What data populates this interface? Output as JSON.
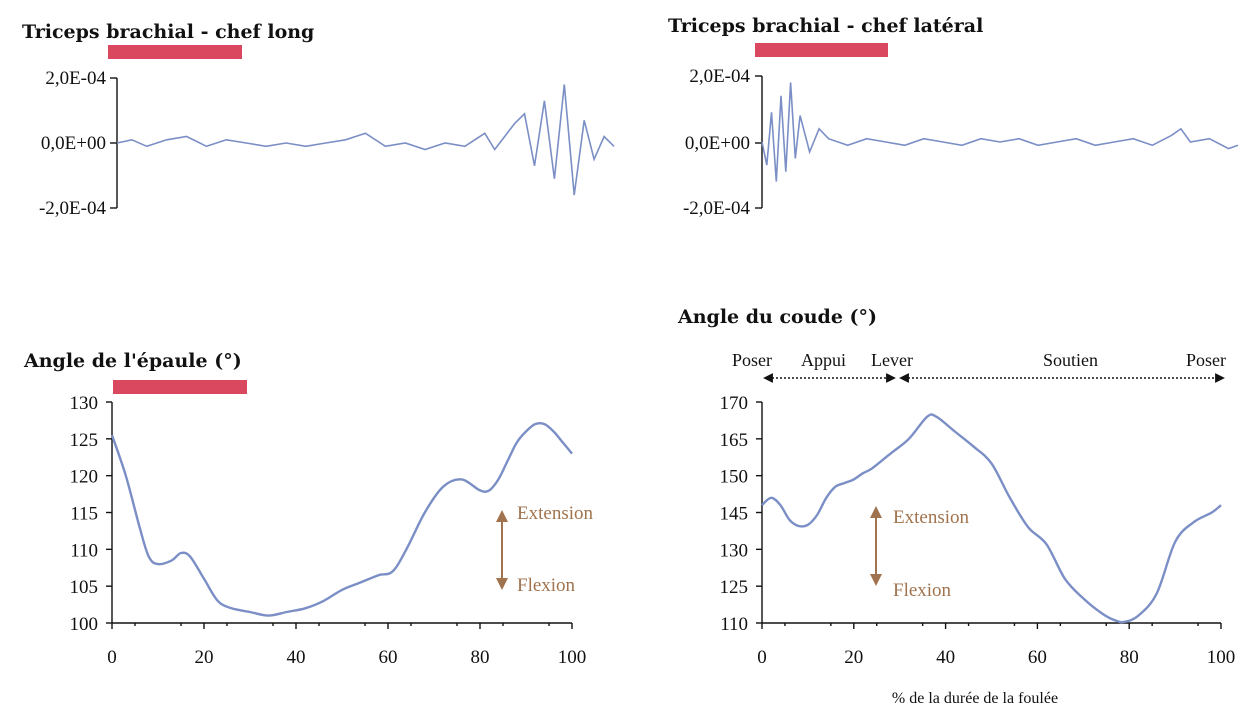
{
  "colors": {
    "trace": "#7b8fc6",
    "bar": "#d9485f",
    "arrow": "#a0734e",
    "axis": "#111111"
  },
  "chart_data": [
    {
      "id": "emg_long",
      "type": "line",
      "title": "Triceps brachial - chef long",
      "y_ticks": [
        "2,0E-04",
        "0,0E+00",
        "-2,0E-04"
      ],
      "ylim": [
        -0.0002,
        0.0002
      ],
      "xlim": [
        0,
        100
      ],
      "activity_bar": [
        0,
        28
      ],
      "series": [
        {
          "x": [
            0,
            3,
            6,
            10,
            14,
            18,
            22,
            26,
            30,
            34,
            38,
            42,
            46,
            50,
            54,
            58,
            62,
            66,
            70,
            74,
            76,
            78,
            80,
            82,
            84,
            86,
            88,
            90,
            92,
            94,
            96,
            98,
            100
          ],
          "values": [
            0.0,
            1e-05,
            -1e-05,
            1e-05,
            2e-05,
            -1e-05,
            1e-05,
            0.0,
            -1e-05,
            0.0,
            -1e-05,
            0.0,
            1e-05,
            3e-05,
            -1e-05,
            0.0,
            -2e-05,
            0.0,
            -1e-05,
            3e-05,
            -2e-05,
            2e-05,
            6e-05,
            9e-05,
            -7e-05,
            0.00013,
            -0.00011,
            0.00018,
            -0.00016,
            7e-05,
            -5e-05,
            2e-05,
            -1e-05
          ]
        }
      ]
    },
    {
      "id": "emg_lateral",
      "type": "line",
      "title": "Triceps brachial - chef latéral",
      "y_ticks": [
        "2,0E-04",
        "0,0E+00",
        "-2,0E-04"
      ],
      "ylim": [
        -0.0002,
        0.0002
      ],
      "xlim": [
        0,
        100
      ],
      "activity_bar": [
        0,
        28
      ],
      "series": [
        {
          "x": [
            0,
            1,
            2,
            3,
            4,
            5,
            6,
            7,
            8,
            10,
            12,
            14,
            18,
            22,
            26,
            30,
            34,
            38,
            42,
            46,
            50,
            54,
            58,
            62,
            66,
            70,
            74,
            78,
            82,
            86,
            88,
            90,
            94,
            98,
            100
          ],
          "values": [
            0.0,
            -7e-05,
            9e-05,
            -0.00012,
            0.00014,
            -9e-05,
            0.00018,
            -5e-05,
            8e-05,
            -3e-05,
            4e-05,
            1e-05,
            -1e-05,
            1e-05,
            0.0,
            -1e-05,
            1e-05,
            0.0,
            -1e-05,
            1e-05,
            0.0,
            1e-05,
            -1e-05,
            0.0,
            1e-05,
            -1e-05,
            0.0,
            1e-05,
            -1e-05,
            2e-05,
            4e-05,
            0.0,
            1e-05,
            -2e-05,
            -1e-05
          ]
        }
      ]
    },
    {
      "id": "shoulder",
      "type": "line",
      "title": "Angle de l'épaule (°)",
      "x_ticks": [
        "0",
        "20",
        "40",
        "60",
        "80",
        "100"
      ],
      "y_ticks": [
        "130",
        "125",
        "120",
        "115",
        "110",
        "105",
        "100"
      ],
      "xlim": [
        0,
        100
      ],
      "ylim": [
        100,
        130
      ],
      "activity_bar": [
        0,
        29
      ],
      "annotation": {
        "top": "Extension",
        "bottom": "Flexion"
      },
      "series": [
        {
          "x": [
            0,
            3,
            6,
            8,
            10,
            13,
            15,
            17,
            20,
            23,
            26,
            30,
            34,
            38,
            42,
            46,
            50,
            54,
            58,
            61,
            64,
            68,
            72,
            76,
            80,
            82,
            84,
            86,
            88,
            90,
            92,
            94,
            96,
            98,
            100
          ],
          "values": [
            125.5,
            120,
            113,
            109,
            108,
            108.5,
            109.5,
            109,
            106,
            103,
            102,
            101.5,
            101,
            101.5,
            102,
            103,
            104.5,
            105.5,
            106.5,
            107,
            110,
            115,
            118.5,
            119.5,
            118,
            118,
            119.5,
            122,
            124.5,
            126,
            127,
            127,
            126,
            124.5,
            123
          ]
        }
      ]
    },
    {
      "id": "elbow",
      "type": "line",
      "title": "Angle du coude (°)",
      "x_ticks": [
        "0",
        "20",
        "40",
        "60",
        "80",
        "100"
      ],
      "y_ticks": [
        "170",
        "165",
        "150",
        "145",
        "130",
        "125",
        "110"
      ],
      "xlabel": "% de la durée de la foulée",
      "xlim": [
        0,
        100
      ],
      "ylim": [
        110,
        170
      ],
      "phases": [
        "Poser",
        "Appui",
        "Lever",
        "Soutien",
        "Poser"
      ],
      "annotation": {
        "top": "Extension",
        "bottom": "Flexion"
      },
      "series": [
        {
          "x": [
            0,
            2,
            4,
            6,
            8,
            10,
            12,
            14,
            16,
            18,
            20,
            22,
            24,
            28,
            32,
            36,
            38,
            42,
            46,
            50,
            54,
            58,
            62,
            66,
            70,
            74,
            77,
            79,
            82,
            86,
            90,
            94,
            98,
            100
          ],
          "values": [
            146,
            147,
            146,
            142,
            139.5,
            140,
            144,
            147,
            148.5,
            149,
            149.5,
            151,
            153,
            159,
            165,
            168,
            168,
            166,
            162,
            155,
            147,
            139,
            132,
            126,
            120,
            114,
            111,
            110.5,
            113,
            122,
            133,
            141,
            145,
            146
          ]
        }
      ]
    }
  ]
}
